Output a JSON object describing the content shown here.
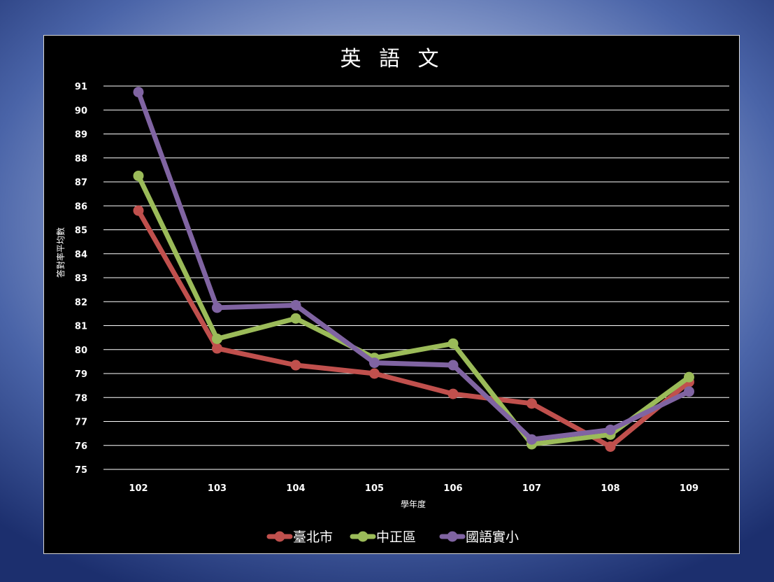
{
  "chart_data": {
    "type": "line",
    "title": "英 語 文",
    "xlabel": "學年度",
    "ylabel": "答對率平均數",
    "categories": [
      "102",
      "103",
      "104",
      "105",
      "106",
      "107",
      "108",
      "109"
    ],
    "ylim": [
      75,
      91
    ],
    "yticks": [
      75,
      76,
      77,
      78,
      79,
      80,
      81,
      82,
      83,
      84,
      85,
      86,
      87,
      88,
      89,
      90,
      91
    ],
    "grid": true,
    "legend_position": "bottom",
    "series": [
      {
        "name": "臺北市",
        "color": "#c0504d",
        "values": [
          85.8,
          80.05,
          79.35,
          79.0,
          78.15,
          77.75,
          75.95,
          78.65
        ]
      },
      {
        "name": "中正區",
        "color": "#9bbb59",
        "values": [
          87.25,
          80.45,
          81.3,
          79.65,
          80.25,
          76.05,
          76.45,
          78.85
        ]
      },
      {
        "name": "國語實小",
        "color": "#8064a2",
        "values": [
          90.75,
          81.75,
          81.85,
          79.45,
          79.35,
          76.25,
          76.65,
          78.25
        ]
      }
    ]
  }
}
